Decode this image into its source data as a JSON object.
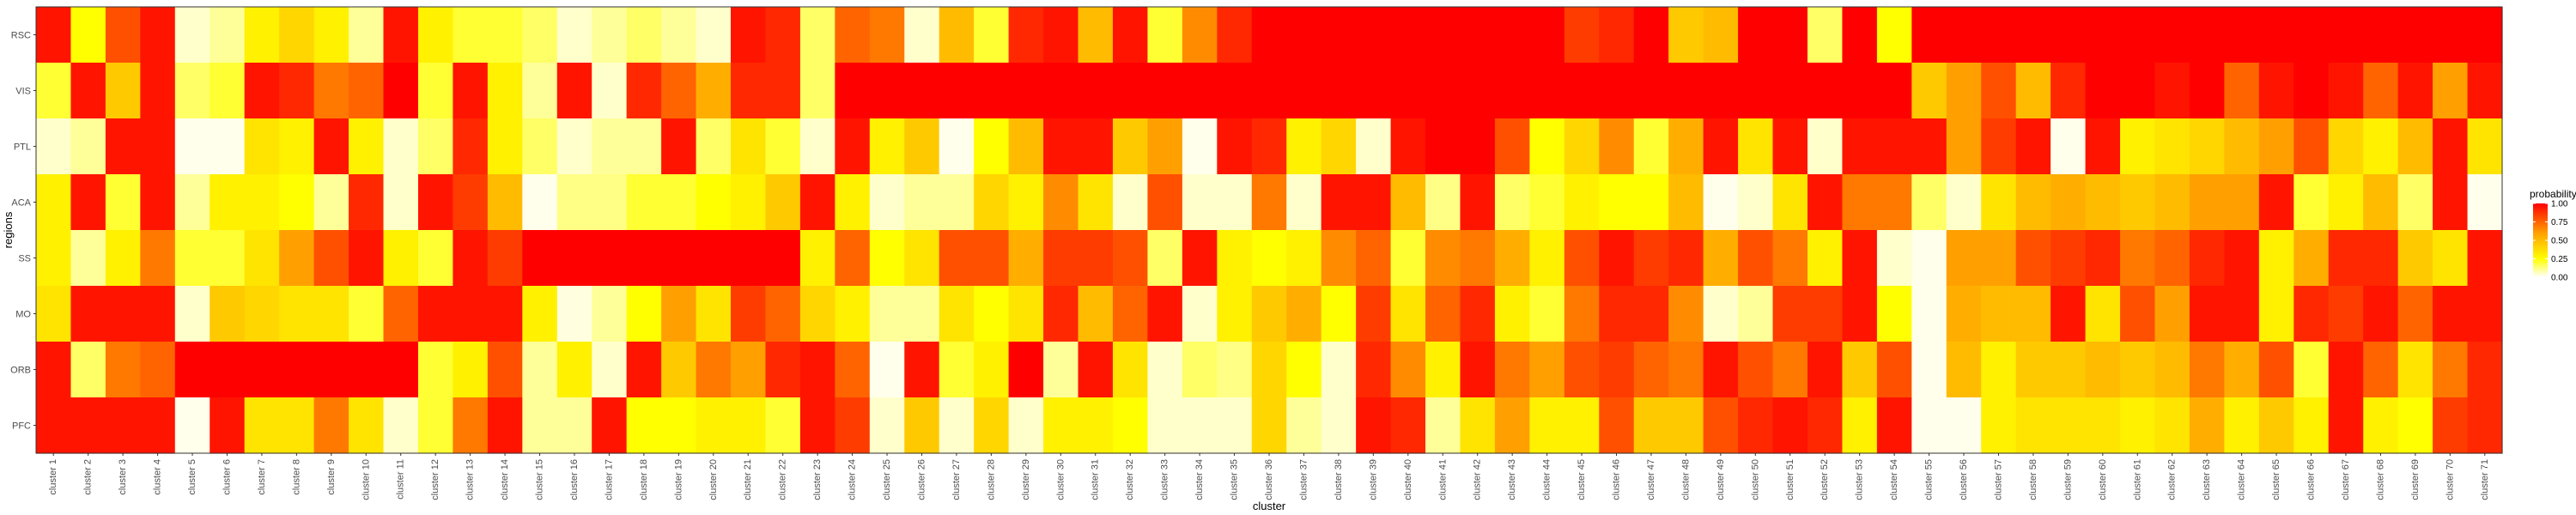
{
  "chart_data": {
    "type": "heatmap",
    "title": "",
    "xlabel": "cluster",
    "ylabel": "regions",
    "y_categories": [
      "RSC",
      "VIS",
      "PTL",
      "ACA",
      "SS",
      "MO",
      "ORB",
      "PFC"
    ],
    "x_categories": [
      "cluster 1",
      "cluster 2",
      "cluster 3",
      "cluster 4",
      "cluster 5",
      "cluster 6",
      "cluster 7",
      "cluster 8",
      "cluster 9",
      "cluster 10",
      "cluster 11",
      "cluster 12",
      "cluster 13",
      "cluster 14",
      "cluster 15",
      "cluster 16",
      "cluster 17",
      "cluster 18",
      "cluster 19",
      "cluster 20",
      "cluster 21",
      "cluster 22",
      "cluster 23",
      "cluster 24",
      "cluster 25",
      "cluster 26",
      "cluster 27",
      "cluster 28",
      "cluster 29",
      "cluster 30",
      "cluster 31",
      "cluster 32",
      "cluster 33",
      "cluster 34",
      "cluster 35",
      "cluster 36",
      "cluster 37",
      "cluster 38",
      "cluster 39",
      "cluster 40",
      "cluster 41",
      "cluster 42",
      "cluster 43",
      "cluster 44",
      "cluster 45",
      "cluster 46",
      "cluster 47",
      "cluster 48",
      "cluster 49",
      "cluster 50",
      "cluster 51",
      "cluster 52",
      "cluster 53",
      "cluster 54",
      "cluster 55",
      "cluster 56",
      "cluster 57",
      "cluster 58",
      "cluster 59",
      "cluster 60",
      "cluster 61",
      "cluster 62",
      "cluster 63",
      "cluster 64",
      "cluster 65",
      "cluster 66",
      "cluster 67",
      "cluster 68",
      "cluster 69",
      "cluster 70",
      "cluster 71"
    ],
    "values": [
      [
        0.95,
        0.25,
        0.8,
        0.95,
        0.05,
        0.1,
        0.3,
        0.4,
        0.3,
        0.1,
        0.95,
        0.3,
        0.2,
        0.2,
        0.15,
        0.05,
        0.1,
        0.15,
        0.1,
        0.05,
        0.95,
        0.9,
        0.15,
        0.75,
        0.7,
        0.05,
        0.5,
        0.2,
        0.9,
        0.95,
        0.5,
        0.95,
        0.2,
        0.65,
        0.9,
        1,
        1,
        1,
        1,
        1,
        1,
        1,
        1,
        1,
        0.85,
        0.9,
        1,
        0.45,
        0.5,
        1,
        1,
        0.15,
        1,
        0.25,
        1,
        1,
        1,
        1,
        1,
        1,
        1,
        1,
        1,
        1,
        1,
        1,
        1,
        1,
        1,
        1,
        1
      ],
      [
        0.2,
        0.95,
        0.45,
        0.95,
        0.15,
        0.2,
        0.95,
        0.9,
        0.7,
        0.75,
        1,
        0.2,
        0.95,
        0.3,
        0.1,
        0.95,
        0.05,
        0.9,
        0.75,
        0.55,
        0.9,
        0.9,
        0.15,
        1,
        1,
        1,
        1,
        1,
        1,
        1,
        1,
        1,
        1,
        1,
        1,
        1,
        1,
        1,
        1,
        1,
        1,
        1,
        1,
        1,
        1,
        1,
        1,
        1,
        1,
        1,
        1,
        1,
        1,
        1,
        0.45,
        0.6,
        0.8,
        0.5,
        0.9,
        1,
        1,
        0.95,
        1,
        0.75,
        0.95,
        1,
        0.95,
        0.75,
        0.95,
        0.6,
        0.95
      ],
      [
        0.05,
        0.1,
        0.95,
        0.95,
        0.02,
        0.02,
        0.35,
        0.3,
        0.95,
        0.3,
        0.05,
        0.15,
        0.9,
        0.3,
        0.15,
        0.05,
        0.1,
        0.1,
        0.95,
        0.15,
        0.35,
        0.2,
        0.05,
        0.95,
        0.3,
        0.45,
        0.02,
        0.25,
        0.5,
        0.95,
        0.95,
        0.45,
        0.6,
        0.02,
        0.95,
        0.9,
        0.3,
        0.4,
        0.05,
        0.95,
        1,
        1,
        0.8,
        0.25,
        0.4,
        0.65,
        0.2,
        0.55,
        0.95,
        0.35,
        0.95,
        0.05,
        0.95,
        0.95,
        0.95,
        0.6,
        0.85,
        0.95,
        0.02,
        0.95,
        0.3,
        0.35,
        0.4,
        0.5,
        0.6,
        0.8,
        0.4,
        0.3,
        0.5,
        0.95,
        0.35
      ],
      [
        0.3,
        0.95,
        0.2,
        0.95,
        0.1,
        0.3,
        0.3,
        0.25,
        0.1,
        0.9,
        0.05,
        0.95,
        0.85,
        0.5,
        0.02,
        0.12,
        0.12,
        0.2,
        0.2,
        0.25,
        0.3,
        0.45,
        0.95,
        0.3,
        0.05,
        0.1,
        0.1,
        0.4,
        0.3,
        0.65,
        0.35,
        0.05,
        0.8,
        0.05,
        0.05,
        0.7,
        0.05,
        0.95,
        0.95,
        0.5,
        0.12,
        0.95,
        0.15,
        0.2,
        0.3,
        0.25,
        0.25,
        0.5,
        0.02,
        0.05,
        0.35,
        0.95,
        0.7,
        0.7,
        0.15,
        0.05,
        0.35,
        0.5,
        0.55,
        0.5,
        0.45,
        0.5,
        0.6,
        0.6,
        0.95,
        0.2,
        0.3,
        0.5,
        0.15,
        0.95,
        0.02
      ],
      [
        0.3,
        0.1,
        0.3,
        0.7,
        0.2,
        0.2,
        0.35,
        0.6,
        0.8,
        0.95,
        0.3,
        0.2,
        0.95,
        0.85,
        1,
        1,
        1,
        1,
        1,
        1,
        1,
        1,
        0.3,
        0.75,
        0.25,
        0.35,
        0.8,
        0.8,
        0.55,
        0.85,
        0.85,
        0.8,
        0.15,
        0.95,
        0.3,
        0.25,
        0.3,
        0.65,
        0.75,
        0.2,
        0.65,
        0.7,
        0.55,
        0.3,
        0.8,
        0.95,
        0.85,
        0.9,
        0.55,
        0.8,
        0.7,
        0.3,
        0.95,
        0.05,
        0.02,
        0.6,
        0.6,
        0.8,
        0.85,
        0.9,
        0.7,
        0.75,
        0.9,
        0.95,
        0.3,
        0.55,
        0.9,
        0.9,
        0.45,
        0.35,
        0.95
      ],
      [
        0.35,
        0.95,
        0.95,
        0.95,
        0.05,
        0.45,
        0.4,
        0.35,
        0.35,
        0.2,
        0.75,
        0.95,
        0.95,
        0.95,
        0.3,
        0.03,
        0.1,
        0.25,
        0.6,
        0.35,
        0.85,
        0.75,
        0.4,
        0.3,
        0.1,
        0.1,
        0.35,
        0.25,
        0.35,
        0.9,
        0.5,
        0.75,
        0.95,
        0.05,
        0.3,
        0.45,
        0.55,
        0.25,
        0.85,
        0.35,
        0.75,
        0.9,
        0.3,
        0.2,
        0.7,
        0.9,
        0.9,
        0.65,
        0.05,
        0.1,
        0.85,
        0.85,
        0.95,
        0.25,
        0.02,
        0.55,
        0.5,
        0.5,
        0.95,
        0.35,
        0.8,
        0.6,
        0.95,
        0.95,
        0.3,
        0.9,
        0.85,
        0.95,
        0.75,
        0.95,
        0.95
      ],
      [
        0.95,
        0.15,
        0.7,
        0.75,
        1,
        1,
        1,
        1,
        1,
        1,
        1,
        0.2,
        0.3,
        0.8,
        0.1,
        0.3,
        0.05,
        0.95,
        0.45,
        0.7,
        0.6,
        0.9,
        0.95,
        0.75,
        0.02,
        0.95,
        0.2,
        0.3,
        1,
        0.1,
        0.95,
        0.35,
        0.05,
        0.15,
        0.12,
        0.4,
        0.25,
        0.05,
        0.9,
        0.65,
        0.3,
        0.95,
        0.7,
        0.6,
        0.8,
        0.85,
        0.75,
        0.7,
        0.95,
        0.8,
        0.7,
        0.95,
        0.45,
        0.8,
        0.02,
        0.5,
        0.3,
        0.45,
        0.45,
        0.5,
        0.45,
        0.5,
        0.7,
        0.55,
        0.8,
        0.2,
        0.95,
        0.75,
        0.35,
        0.7,
        0.9
      ],
      [
        0.95,
        0.95,
        0.95,
        0.95,
        0.02,
        0.95,
        0.35,
        0.35,
        0.7,
        0.35,
        0.05,
        0.2,
        0.7,
        0.95,
        0.1,
        0.1,
        0.95,
        0.25,
        0.25,
        0.3,
        0.3,
        0.2,
        0.95,
        0.85,
        0.05,
        0.45,
        0.05,
        0.4,
        0.05,
        0.3,
        0.3,
        0.25,
        0.05,
        0.05,
        0.05,
        0.4,
        0.1,
        0.05,
        0.95,
        0.9,
        0.1,
        0.35,
        0.6,
        0.3,
        0.3,
        0.8,
        0.45,
        0.45,
        0.8,
        0.9,
        0.95,
        0.9,
        0.3,
        0.95,
        0.02,
        0.02,
        0.3,
        0.35,
        0.35,
        0.35,
        0.3,
        0.35,
        0.55,
        0.3,
        0.45,
        0.3,
        0.95,
        0.3,
        0.25,
        0.85,
        0.9
      ]
    ],
    "color_scale": {
      "low": "#ffffff",
      "mid_low": "#ffff00",
      "high": "#ff0000"
    },
    "legend": {
      "title": "probability",
      "ticks": [
        "1.00",
        "0.75",
        "0.50",
        "0.25",
        "0.00"
      ],
      "placement": "right"
    },
    "vlim": [
      0,
      1
    ],
    "grid": false
  }
}
